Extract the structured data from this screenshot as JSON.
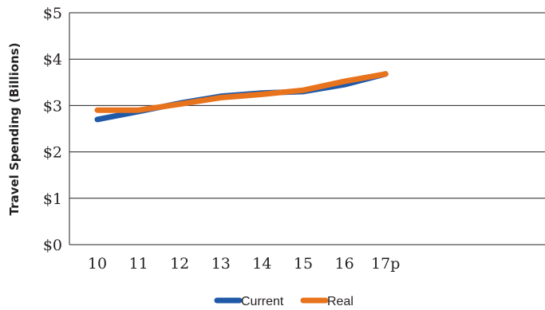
{
  "chart_data": {
    "type": "line",
    "title": "",
    "xlabel": "",
    "ylabel": "Travel Spending (Billions)",
    "categories": [
      "10",
      "11",
      "12",
      "13",
      "14",
      "15",
      "16",
      "17p"
    ],
    "ylim": [
      0,
      5
    ],
    "y_ticks": [
      {
        "value": 0,
        "label": "$0"
      },
      {
        "value": 1,
        "label": "$1"
      },
      {
        "value": 2,
        "label": "$2"
      },
      {
        "value": 3,
        "label": "$3"
      },
      {
        "value": 4,
        "label": "$4"
      },
      {
        "value": 5,
        "label": "$5"
      }
    ],
    "grid": true,
    "legend": "bottom",
    "series": [
      {
        "name": "Current",
        "color": "#1f5aa8",
        "values": [
          2.7,
          2.87,
          3.05,
          3.2,
          3.27,
          3.3,
          3.45,
          3.68
        ]
      },
      {
        "name": "Real",
        "color": "#e8731d",
        "values": [
          2.9,
          2.9,
          3.03,
          3.17,
          3.24,
          3.33,
          3.52,
          3.68
        ]
      }
    ]
  }
}
